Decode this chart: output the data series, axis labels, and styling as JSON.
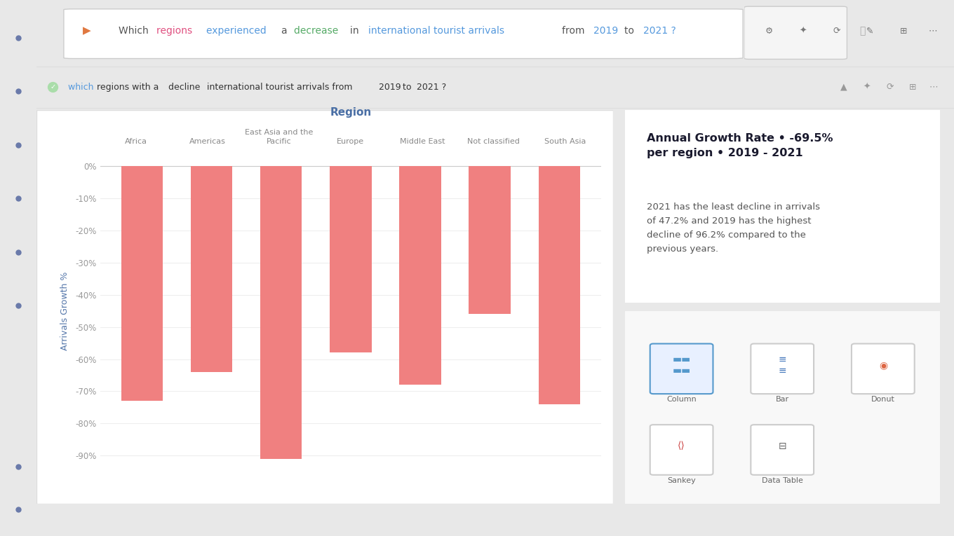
{
  "categories": [
    "Africa",
    "Americas",
    "East Asia and the\nPacific",
    "Europe",
    "Middle East",
    "Not classified",
    "South Asia"
  ],
  "values": [
    -73,
    -64,
    -91,
    -58,
    -68,
    -46,
    -74
  ],
  "bar_color": "#F08080",
  "title": "Region",
  "ylabel": "Arrivals Growth %",
  "ylim": [
    -95,
    5
  ],
  "yticks": [
    0,
    -10,
    -20,
    -30,
    -40,
    -50,
    -60,
    -70,
    -80,
    -90
  ],
  "ytick_labels": [
    "0%",
    "-10%",
    "-20%",
    "-30%",
    "-40%",
    "-50%",
    "-60%",
    "-70%",
    "-80%",
    "-90%"
  ],
  "background_color": "#ffffff",
  "sidebar_color": "#2d3250",
  "topbar_color": "#ffffff",
  "subbar_color": "#f7f7f7",
  "grid_color": "#eeeeee",
  "annotation_title": "Annual Growth Rate • -69.5%\nper region • 2019 - 2021",
  "annotation_body": "2021 has the least decline in arrivals\nof 47.2% and 2019 has the highest\ndecline of 96.2% compared to the\nprevious years.",
  "search_text": "Which  regions  experienced  a  decrease  in  international tourist arrivals  from  2019  to  2021 ?",
  "subbar_text": "which regions with a decline international tourist arrivals from 2019 to 2021 ?",
  "title_fontsize": 11,
  "axis_label_fontsize": 9,
  "tick_fontsize": 8.5,
  "cat_label_fontsize": 8
}
